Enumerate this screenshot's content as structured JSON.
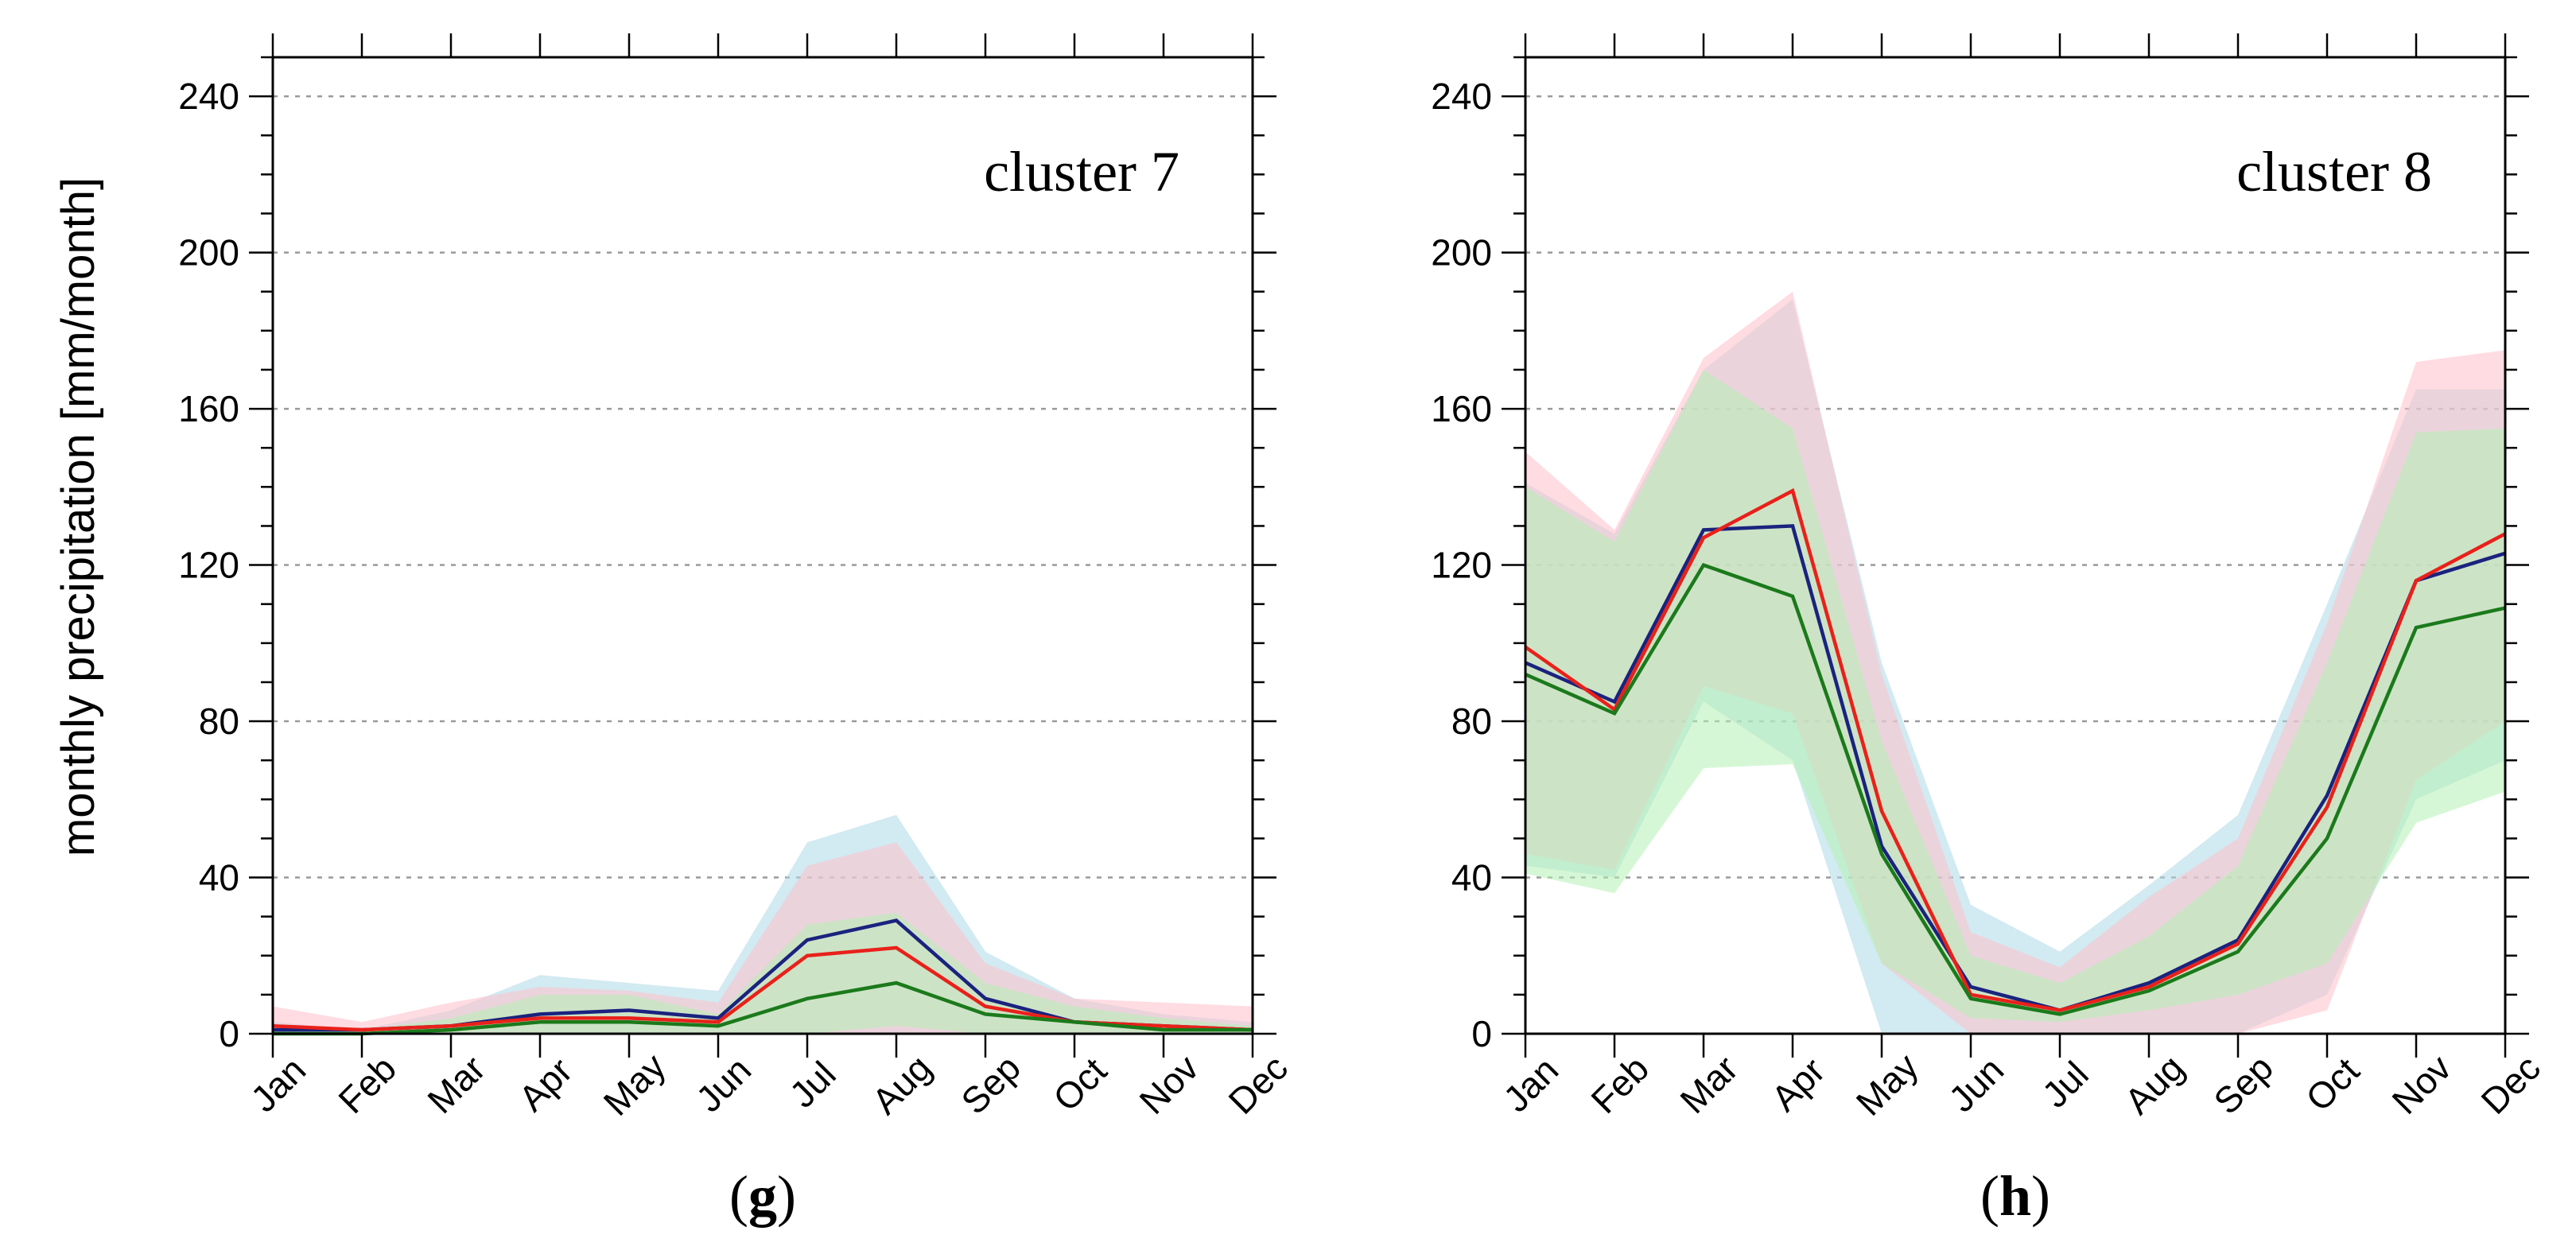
{
  "figure": {
    "ylabel": "monthly precipitation [mm/month]"
  },
  "chart_data": [
    {
      "type": "line",
      "title": "cluster 7",
      "panel_label": "g",
      "xlabel": "",
      "ylabel": "monthly precipitation [mm/month]",
      "categories": [
        "Jan",
        "Feb",
        "Mar",
        "Apr",
        "May",
        "Jun",
        "Jul",
        "Aug",
        "Sep",
        "Oct",
        "Nov",
        "Dec"
      ],
      "ylim": [
        0,
        250
      ],
      "yticks": [
        0,
        40,
        80,
        120,
        160,
        200,
        240
      ],
      "grid": true,
      "bands": [
        {
          "name": "blue range",
          "color": "#add8e6",
          "lower": [
            0,
            0,
            0,
            0,
            0,
            0,
            0,
            0,
            0,
            0,
            0,
            0
          ],
          "upper": [
            3,
            1,
            6,
            15,
            13,
            11,
            49,
            56,
            21,
            9,
            5,
            3
          ]
        },
        {
          "name": "red range",
          "color": "#ffc0cb",
          "lower": [
            0,
            0,
            0,
            0,
            0,
            0,
            0,
            0,
            0,
            0,
            0,
            0
          ],
          "upper": [
            7,
            3,
            8,
            12,
            11,
            8,
            43,
            49,
            18,
            9,
            8,
            7
          ]
        },
        {
          "name": "green range",
          "color": "#b4f0b4",
          "lower": [
            0,
            0,
            0,
            0,
            0,
            0,
            0,
            2,
            0,
            0,
            0,
            0
          ],
          "upper": [
            1,
            1,
            4,
            10,
            10,
            5,
            28,
            31,
            13,
            7,
            4,
            2
          ]
        }
      ],
      "series": [
        {
          "name": "blue",
          "color": "#1a237e",
          "values": [
            1,
            1,
            2,
            5,
            6,
            4,
            24,
            29,
            9,
            3,
            2,
            1
          ]
        },
        {
          "name": "red",
          "color": "#e8211a",
          "values": [
            2,
            1,
            2,
            4,
            4,
            3,
            20,
            22,
            7,
            3,
            2,
            1
          ]
        },
        {
          "name": "green",
          "color": "#1b7a1b",
          "values": [
            0,
            0,
            1,
            3,
            3,
            2,
            9,
            13,
            5,
            3,
            1,
            1
          ]
        }
      ]
    },
    {
      "type": "line",
      "title": "cluster 8",
      "panel_label": "h",
      "xlabel": "",
      "ylabel": "",
      "categories": [
        "Jan",
        "Feb",
        "Mar",
        "Apr",
        "May",
        "Jun",
        "Jul",
        "Aug",
        "Sep",
        "Oct",
        "Nov",
        "Dec"
      ],
      "ylim": [
        0,
        250
      ],
      "yticks": [
        0,
        40,
        80,
        120,
        160,
        200,
        240
      ],
      "grid": true,
      "bands": [
        {
          "name": "blue range",
          "color": "#add8e6",
          "lower": [
            43,
            40,
            85,
            70,
            0,
            0,
            0,
            0,
            0,
            10,
            60,
            70
          ],
          "upper": [
            141,
            128,
            170,
            188,
            95,
            33,
            21,
            38,
            56,
            110,
            165,
            165
          ]
        },
        {
          "name": "red range",
          "color": "#ffc0cb",
          "lower": [
            46,
            42,
            89,
            82,
            18,
            0,
            0,
            0,
            0,
            6,
            65,
            80
          ],
          "upper": [
            149,
            129,
            173,
            190,
            92,
            26,
            17,
            35,
            50,
            105,
            172,
            175
          ]
        },
        {
          "name": "green range",
          "color": "#b4f0b4",
          "lower": [
            41,
            36,
            68,
            69,
            18,
            4,
            3,
            6,
            10,
            18,
            54,
            62
          ],
          "upper": [
            140,
            126,
            170,
            155,
            75,
            20,
            13,
            25,
            43,
            95,
            154,
            155
          ]
        }
      ],
      "series": [
        {
          "name": "blue",
          "color": "#1a237e",
          "values": [
            95,
            85,
            129,
            130,
            48,
            12,
            6,
            13,
            24,
            61,
            116,
            123
          ]
        },
        {
          "name": "red",
          "color": "#e8211a",
          "values": [
            99,
            83,
            127,
            139,
            57,
            10,
            6,
            12,
            23,
            58,
            116,
            128
          ]
        },
        {
          "name": "green",
          "color": "#1b7a1b",
          "values": [
            92,
            82,
            120,
            112,
            46,
            9,
            5,
            11,
            21,
            50,
            104,
            109
          ]
        }
      ]
    }
  ]
}
